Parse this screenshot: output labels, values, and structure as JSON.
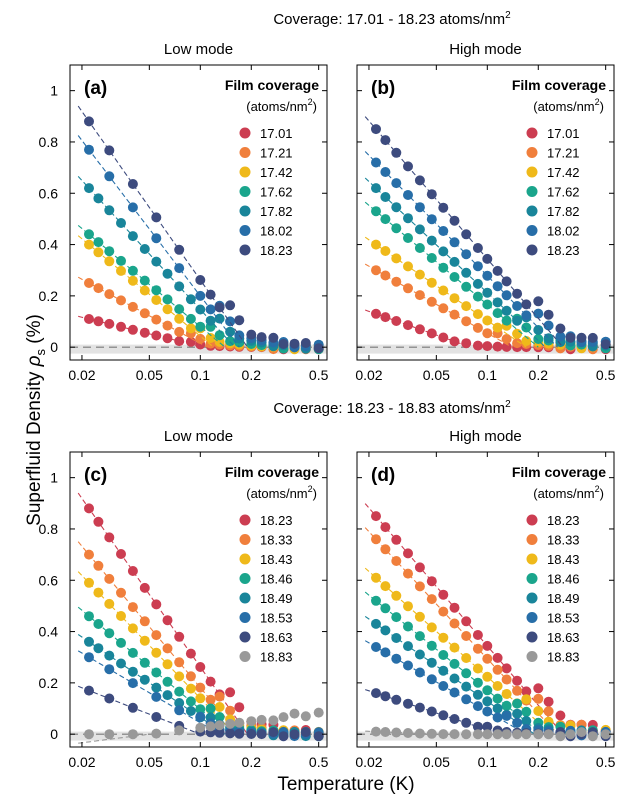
{
  "figure": {
    "coverage_titles": [
      "Coverage: 17.01 - 18.23 atoms/nm",
      "Coverage: 18.23 - 18.83 atoms/nm"
    ],
    "superscript": "2",
    "ylabel": "Superfluid Density ",
    "ylabel_symbol": "ρ",
    "ylabel_sub": "s",
    "ylabel_unit": " (%)",
    "xlabel": "Temperature (K)"
  },
  "chart_data": [
    {
      "type": "scatter",
      "panel": "(a)",
      "mode_title": "Low mode",
      "legend_title": "Film coverage",
      "legend_unit": "(atoms/nm",
      "legend_unit_sup": "2",
      "legend_unit_close": ")",
      "xscale": "log",
      "xlim": [
        0.017,
        0.56
      ],
      "ylim": [
        -0.05,
        1.1
      ],
      "x_ticks": [
        0.02,
        0.05,
        0.1,
        0.2,
        0.5
      ],
      "x_tick_labels": [
        "0.02",
        "0.05",
        "0.1",
        "0.2",
        "0.5"
      ],
      "y_ticks": [
        0,
        0.2,
        0.4,
        0.6,
        0.8,
        1
      ],
      "y_tick_labels": [
        "0",
        "0.2",
        "0.4",
        "0.6",
        "0.8",
        "1"
      ],
      "zero_line": true,
      "legend_position": "top-right",
      "series": [
        {
          "name": "17.01",
          "color": "#cc3d51",
          "start": 0.11,
          "tc": 0.105
        },
        {
          "name": "17.21",
          "color": "#f07f3c",
          "start": 0.25,
          "tc": 0.11
        },
        {
          "name": "17.42",
          "color": "#efb91a",
          "start": 0.4,
          "tc": 0.12
        },
        {
          "name": "17.62",
          "color": "#1aa58c",
          "start": 0.44,
          "tc": 0.14
        },
        {
          "name": "17.82",
          "color": "#19859a",
          "start": 0.62,
          "tc": 0.16
        },
        {
          "name": "18.02",
          "color": "#276ea8",
          "start": 0.77,
          "tc": 0.17
        },
        {
          "name": "18.23",
          "color": "#3d4b7e",
          "start": 0.88,
          "tc": 0.19
        }
      ]
    },
    {
      "type": "scatter",
      "panel": "(b)",
      "mode_title": "High mode",
      "legend_title": "Film coverage",
      "legend_unit": "(atoms/nm",
      "legend_unit_sup": "2",
      "legend_unit_close": ")",
      "xscale": "log",
      "xlim": [
        0.017,
        0.56
      ],
      "ylim": [
        -0.05,
        1.1
      ],
      "x_ticks": [
        0.02,
        0.05,
        0.1,
        0.2,
        0.5
      ],
      "x_tick_labels": [
        "0.02",
        "0.05",
        "0.1",
        "0.2",
        "0.5"
      ],
      "y_ticks": [
        0,
        0.2,
        0.4,
        0.6,
        0.8,
        1
      ],
      "y_tick_labels": [
        "0",
        "0.2",
        "0.4",
        "0.6",
        "0.8",
        "1"
      ],
      "zero_line": true,
      "legend_position": "top-right",
      "series": [
        {
          "name": "17.01",
          "color": "#cc3d51",
          "start": 0.13,
          "tc": 0.08
        },
        {
          "name": "17.21",
          "color": "#f07f3c",
          "start": 0.3,
          "tc": 0.14
        },
        {
          "name": "17.42",
          "color": "#efb91a",
          "start": 0.4,
          "tc": 0.17
        },
        {
          "name": "17.62",
          "color": "#1aa58c",
          "start": 0.53,
          "tc": 0.2
        },
        {
          "name": "17.82",
          "color": "#19859a",
          "start": 0.62,
          "tc": 0.22
        },
        {
          "name": "18.02",
          "color": "#276ea8",
          "start": 0.72,
          "tc": 0.26
        },
        {
          "name": "18.23",
          "color": "#3d4b7e",
          "start": 0.85,
          "tc": 0.28
        }
      ]
    },
    {
      "type": "scatter",
      "panel": "(c)",
      "mode_title": "Low mode",
      "legend_title": "Film coverage",
      "legend_unit": "(atoms/nm",
      "legend_unit_sup": "2",
      "legend_unit_close": ")",
      "xscale": "log",
      "xlim": [
        0.017,
        0.56
      ],
      "ylim": [
        -0.05,
        1.1
      ],
      "x_ticks": [
        0.02,
        0.05,
        0.1,
        0.2,
        0.5
      ],
      "x_tick_labels": [
        "0.02",
        "0.05",
        "0.1",
        "0.2",
        "0.5"
      ],
      "y_ticks": [
        0,
        0.2,
        0.4,
        0.6,
        0.8,
        1
      ],
      "y_tick_labels": [
        "0",
        "0.2",
        "0.4",
        "0.6",
        "0.8",
        "1"
      ],
      "zero_line": true,
      "legend_position": "top-right",
      "series": [
        {
          "name": "18.23",
          "color": "#cc3d51",
          "start": 0.88,
          "tc": 0.19
        },
        {
          "name": "18.33",
          "color": "#f07f3c",
          "start": 0.7,
          "tc": 0.17
        },
        {
          "name": "18.43",
          "color": "#efb91a",
          "start": 0.59,
          "tc": 0.16
        },
        {
          "name": "18.46",
          "color": "#1aa58c",
          "start": 0.46,
          "tc": 0.15
        },
        {
          "name": "18.49",
          "color": "#19859a",
          "start": 0.36,
          "tc": 0.14
        },
        {
          "name": "18.53",
          "color": "#276ea8",
          "start": 0.3,
          "tc": 0.13
        },
        {
          "name": "18.63",
          "color": "#3d4b7e",
          "start": 0.17,
          "tc": 0.1
        },
        {
          "name": "18.83",
          "color": "#999999",
          "start": -0.03,
          "tc": 0.05
        }
      ]
    },
    {
      "type": "scatter",
      "panel": "(d)",
      "mode_title": "High mode",
      "legend_title": "Film coverage",
      "legend_unit": "(atoms/nm",
      "legend_unit_sup": "2",
      "legend_unit_close": ")",
      "xscale": "log",
      "xlim": [
        0.017,
        0.56
      ],
      "ylim": [
        -0.05,
        1.1
      ],
      "x_ticks": [
        0.02,
        0.05,
        0.1,
        0.2,
        0.5
      ],
      "x_tick_labels": [
        "0.02",
        "0.05",
        "0.1",
        "0.2",
        "0.5"
      ],
      "y_ticks": [
        0,
        0.2,
        0.4,
        0.6,
        0.8,
        1
      ],
      "y_tick_labels": [
        "0",
        "0.2",
        "0.4",
        "0.6",
        "0.8",
        "1"
      ],
      "zero_line": true,
      "legend_position": "top-right",
      "series": [
        {
          "name": "18.23",
          "color": "#cc3d51",
          "start": 0.85,
          "tc": 0.28
        },
        {
          "name": "18.33",
          "color": "#f07f3c",
          "start": 0.76,
          "tc": 0.26
        },
        {
          "name": "18.43",
          "color": "#efb91a",
          "start": 0.61,
          "tc": 0.24
        },
        {
          "name": "18.46",
          "color": "#1aa58c",
          "start": 0.52,
          "tc": 0.21
        },
        {
          "name": "18.49",
          "color": "#19859a",
          "start": 0.43,
          "tc": 0.19
        },
        {
          "name": "18.53",
          "color": "#276ea8",
          "start": 0.34,
          "tc": 0.17
        },
        {
          "name": "18.63",
          "color": "#3d4b7e",
          "start": 0.16,
          "tc": 0.12
        },
        {
          "name": "18.83",
          "color": "#999999",
          "start": 0.01,
          "tc": 0.05
        }
      ]
    }
  ]
}
